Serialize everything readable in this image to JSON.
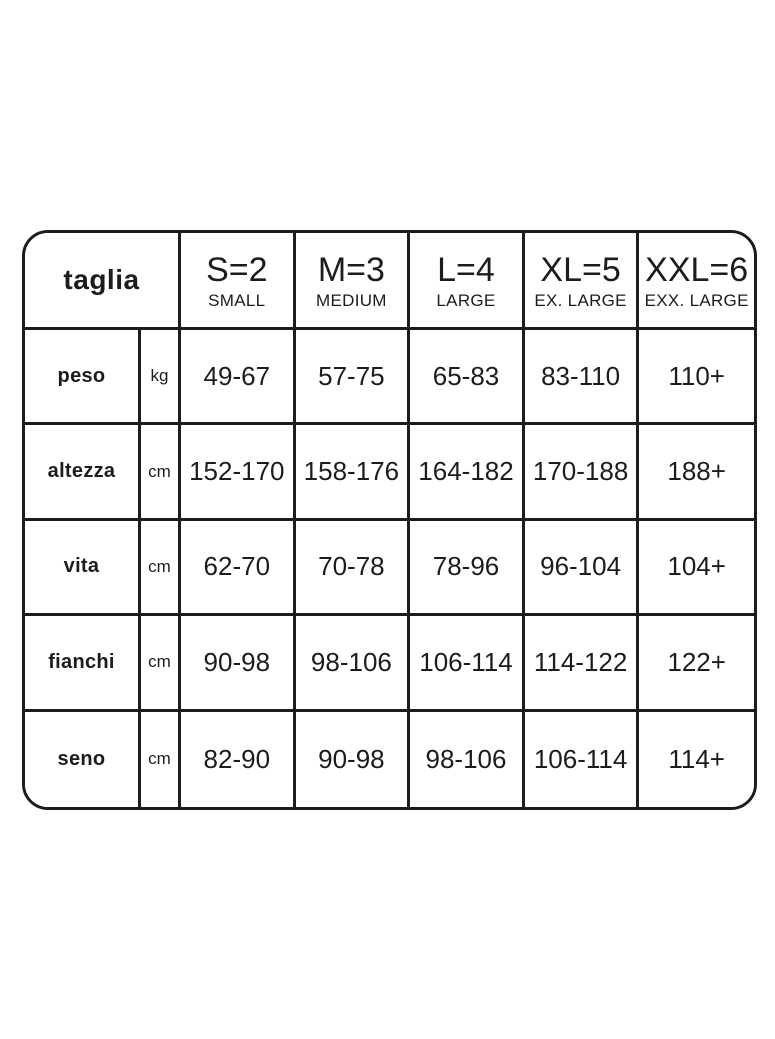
{
  "colors": {
    "border": "#1c1c1c",
    "text": "#1c1c1c",
    "background": "#ffffff"
  },
  "chart_data": {
    "type": "table",
    "corner_label": "taglia",
    "size_columns": [
      {
        "code": "S=2",
        "name": "SMALL"
      },
      {
        "code": "M=3",
        "name": "MEDIUM"
      },
      {
        "code": "L=4",
        "name": "LARGE"
      },
      {
        "code": "XL=5",
        "name": "EX. LARGE"
      },
      {
        "code": "XXL=6",
        "name": "EXX. LARGE"
      }
    ],
    "rows": [
      {
        "label": "peso",
        "unit": "kg",
        "values": [
          "49-67",
          "57-75",
          "65-83",
          "83-110",
          "110+"
        ]
      },
      {
        "label": "altezza",
        "unit": "cm",
        "values": [
          "152-170",
          "158-176",
          "164-182",
          "170-188",
          "188+"
        ]
      },
      {
        "label": "vita",
        "unit": "cm",
        "values": [
          "62-70",
          "70-78",
          "78-96",
          "96-104",
          "104+"
        ]
      },
      {
        "label": "fianchi",
        "unit": "cm",
        "values": [
          "90-98",
          "98-106",
          "106-114",
          "114-122",
          "122+"
        ]
      },
      {
        "label": "seno",
        "unit": "cm",
        "values": [
          "82-90",
          "90-98",
          "98-106",
          "106-114",
          "114+"
        ]
      }
    ]
  }
}
